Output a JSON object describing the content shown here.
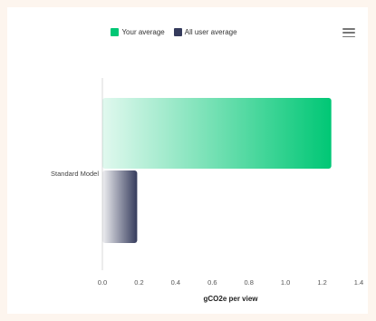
{
  "chart_data": {
    "type": "bar",
    "orientation": "horizontal",
    "categories": [
      "Standard Model"
    ],
    "series": [
      {
        "name": "Your average",
        "values": [
          1.25
        ],
        "color": "#00c775"
      },
      {
        "name": "All user average",
        "values": [
          0.19
        ],
        "color": "#353b5c"
      }
    ],
    "xlabel": "gCO2e per view",
    "ylabel": "",
    "xlim": [
      0,
      1.4
    ],
    "xticks": [
      "0.0",
      "0.2",
      "0.4",
      "0.6",
      "0.8",
      "1.0",
      "1.2",
      "1.4"
    ],
    "grid": false,
    "legend_position": "top-center"
  },
  "menu_icon": "hamburger-menu-icon"
}
